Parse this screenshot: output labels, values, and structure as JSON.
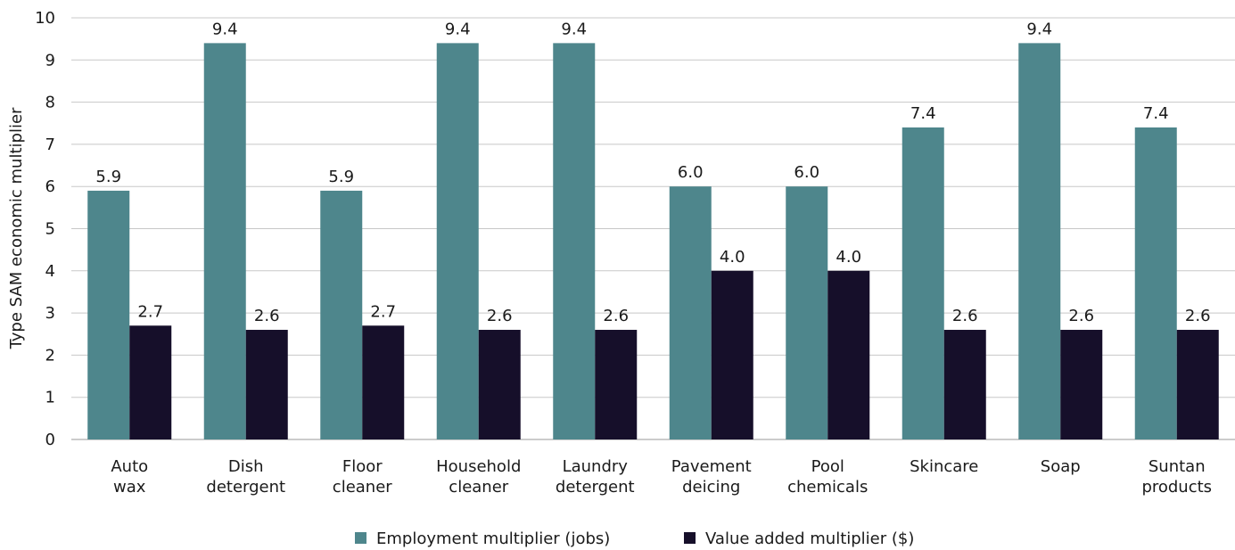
{
  "chart_data": {
    "type": "bar",
    "title": "",
    "xlabel": "",
    "ylabel": "Type SAM economic multiplier",
    "ylim": [
      0,
      10
    ],
    "yticks": [
      0,
      1,
      2,
      3,
      4,
      5,
      6,
      7,
      8,
      9,
      10
    ],
    "grid": true,
    "legend_position": "bottom",
    "categories": [
      [
        "Auto",
        "wax"
      ],
      [
        "Dish",
        "detergent"
      ],
      [
        "Floor",
        "cleaner"
      ],
      [
        "Household",
        "cleaner"
      ],
      [
        "Laundry",
        "detergent"
      ],
      [
        "Pavement",
        "deicing"
      ],
      [
        "Pool",
        "chemicals"
      ],
      [
        "Skincare"
      ],
      [
        "Soap"
      ],
      [
        "Suntan",
        "products"
      ]
    ],
    "series": [
      {
        "name": "Employment multiplier (jobs)",
        "color": "#4e868c",
        "values": [
          5.9,
          9.4,
          5.9,
          9.4,
          9.4,
          6.0,
          6.0,
          7.4,
          9.4,
          7.4
        ],
        "labels": [
          "5.9",
          "9.4",
          "5.9",
          "9.4",
          "9.4",
          "6.0",
          "6.0",
          "7.4",
          "9.4",
          "7.4"
        ]
      },
      {
        "name": "Value added multiplier ($)",
        "color": "#160f2a",
        "values": [
          2.7,
          2.6,
          2.7,
          2.6,
          2.6,
          4.0,
          4.0,
          2.6,
          2.6,
          2.6
        ],
        "labels": [
          "2.7",
          "2.6",
          "2.7",
          "2.6",
          "2.6",
          "4.0",
          "4.0",
          "2.6",
          "2.6",
          "2.6"
        ]
      }
    ]
  }
}
